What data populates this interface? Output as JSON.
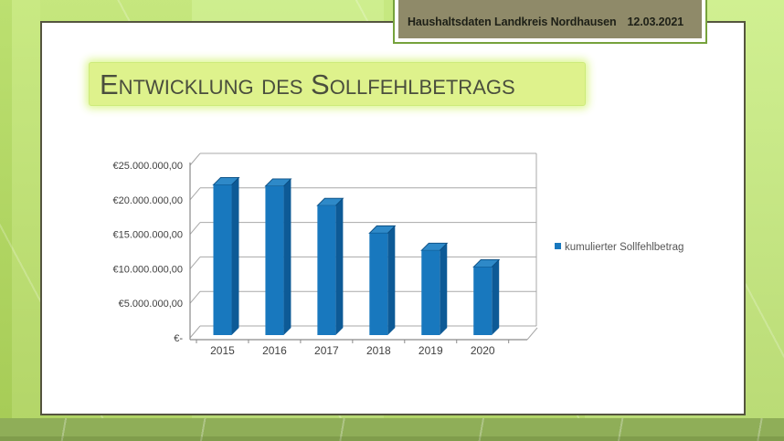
{
  "header": {
    "title": "Haushaltsdaten Landkreis Nordhausen",
    "date": "12.03.2021"
  },
  "slide": {
    "title": "Entwicklung des Sollfehlbetrags"
  },
  "chart_data": {
    "type": "bar",
    "style": "3d-column",
    "title": "",
    "xlabel": "",
    "ylabel": "",
    "categories": [
      "2015",
      "2016",
      "2017",
      "2018",
      "2019",
      "2020"
    ],
    "series": [
      {
        "name": "kumulierter Sollfehlbetrag",
        "values": [
          21500000,
          21300000,
          18500000,
          14500000,
          12000000,
          9600000
        ],
        "color": "#1878BE"
      }
    ],
    "ylim": [
      0,
      25000000
    ],
    "ytick_step": 5000000,
    "ytick_labels": [
      "€-",
      "€5.000.000,00",
      "€10.000.000,00",
      "€15.000.000,00",
      "€20.000.000,00",
      "€25.000.000,00"
    ],
    "grid": true,
    "legend": {
      "position": "right",
      "entries": [
        "kumulierter Sollfehlbetrag"
      ]
    }
  },
  "colors": {
    "bar_front": "#1878BE",
    "bar_side": "#0D5A96",
    "bar_top": "#2E89C8",
    "bar_top_edge": "#0A4C80",
    "gridline": "#A8A8A8",
    "axis": "#8A8A8A",
    "axis_text": "#3F3F3F",
    "legend_text": "#555555",
    "banner_fill": "#DEF28C",
    "header_fill": "#8F8A69",
    "frame_green": "#C3E775",
    "bottom_bar": "#8FAE58"
  }
}
